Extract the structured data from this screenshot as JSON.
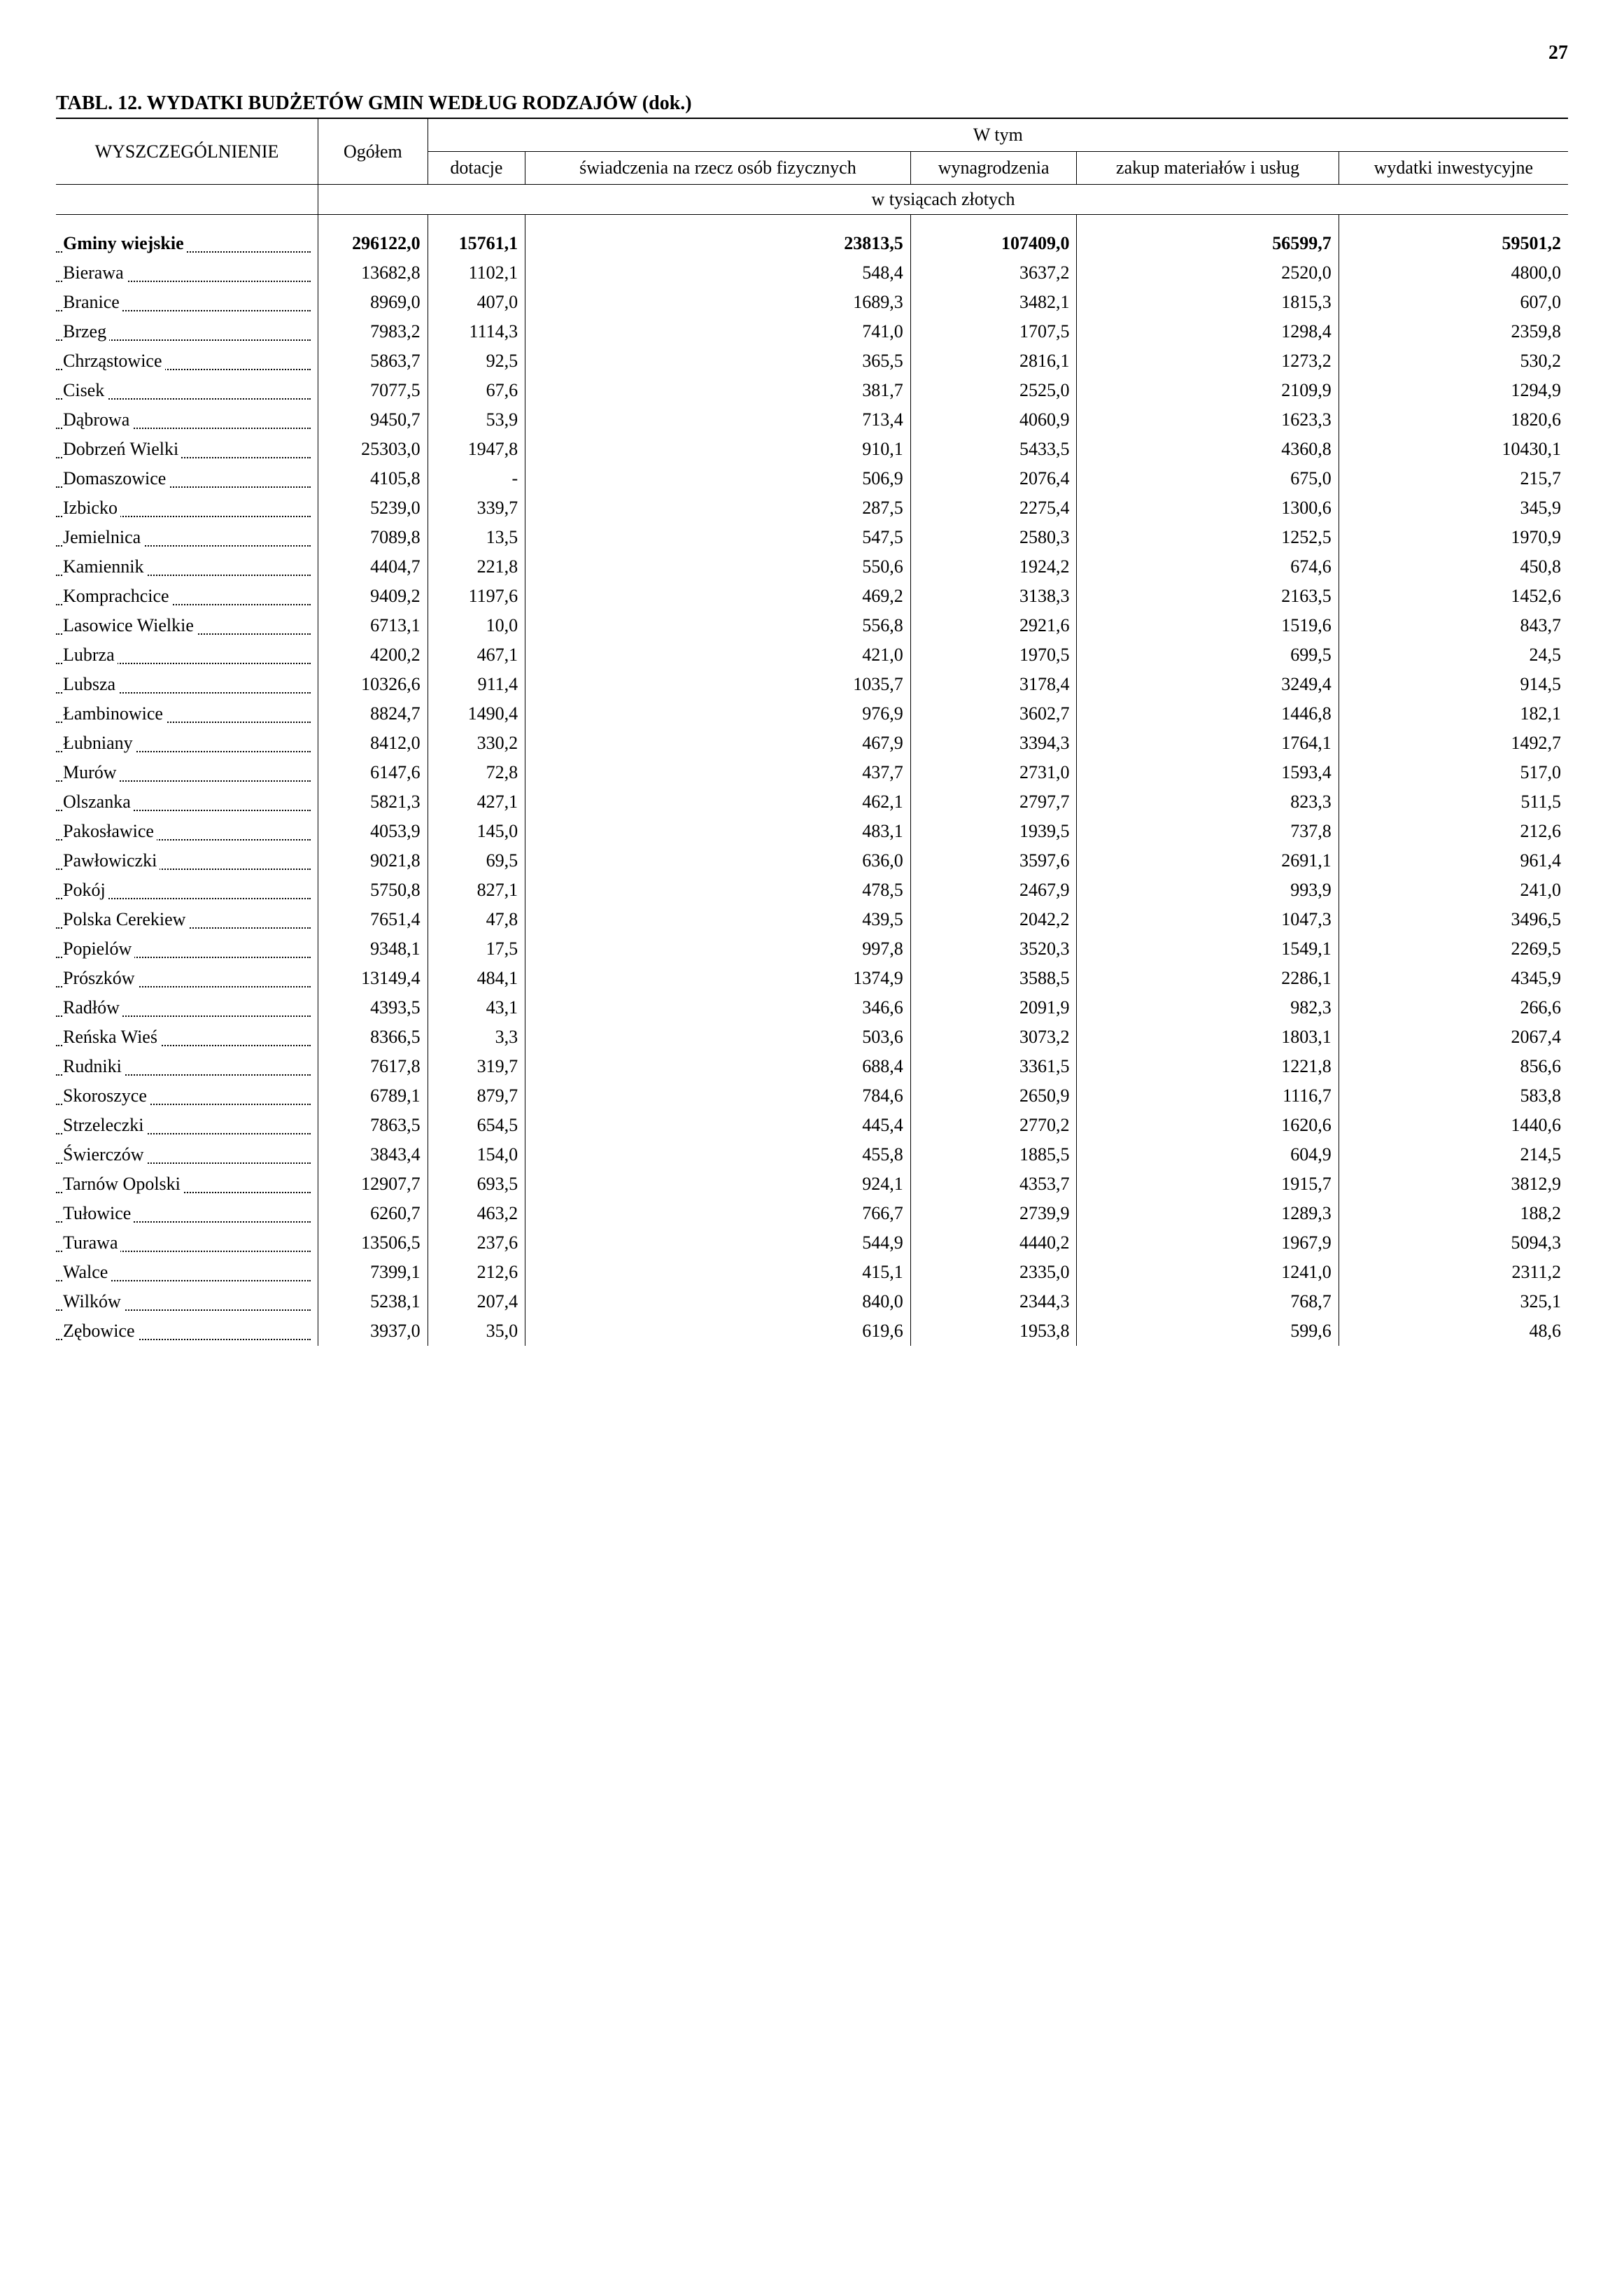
{
  "page_number": "27",
  "title": "TABL. 12.    WYDATKI  BUDŻETÓW  GMIN  WEDŁUG  RODZAJÓW (dok.)",
  "header": {
    "wyszczegolnienie": "WYSZCZEGÓLNIENIE",
    "ogolem": "Ogółem",
    "wtym": "W tym",
    "dotacje": "dotacje",
    "swiadczenia": "świadczenia na rzecz osób fizycznych",
    "wynagrodzenia": "wynagro­dzenia",
    "zakup": "zakup materiałów i usług",
    "wydatki": "wydatki inwesty­cyjne",
    "units": "w tysiącach złotych"
  },
  "rows": [
    {
      "bold": true,
      "label": "Gminy wiejskie",
      "v": [
        "296122,0",
        "15761,1",
        "23813,5",
        "107409,0",
        "56599,7",
        "59501,2"
      ]
    },
    {
      "label": "Bierawa",
      "v": [
        "13682,8",
        "1102,1",
        "548,4",
        "3637,2",
        "2520,0",
        "4800,0"
      ]
    },
    {
      "label": "Branice",
      "v": [
        "8969,0",
        "407,0",
        "1689,3",
        "3482,1",
        "1815,3",
        "607,0"
      ]
    },
    {
      "label": "Brzeg",
      "v": [
        "7983,2",
        "1114,3",
        "741,0",
        "1707,5",
        "1298,4",
        "2359,8"
      ]
    },
    {
      "label": "Chrząstowice",
      "v": [
        "5863,7",
        "92,5",
        "365,5",
        "2816,1",
        "1273,2",
        "530,2"
      ]
    },
    {
      "label": "Cisek",
      "v": [
        "7077,5",
        "67,6",
        "381,7",
        "2525,0",
        "2109,9",
        "1294,9"
      ]
    },
    {
      "label": "Dąbrowa",
      "v": [
        "9450,7",
        "53,9",
        "713,4",
        "4060,9",
        "1623,3",
        "1820,6"
      ]
    },
    {
      "label": "Dobrzeń Wielki",
      "v": [
        "25303,0",
        "1947,8",
        "910,1",
        "5433,5",
        "4360,8",
        "10430,1"
      ]
    },
    {
      "label": "Domaszowice",
      "v": [
        "4105,8",
        "-",
        "506,9",
        "2076,4",
        "675,0",
        "215,7"
      ]
    },
    {
      "label": "Izbicko",
      "v": [
        "5239,0",
        "339,7",
        "287,5",
        "2275,4",
        "1300,6",
        "345,9"
      ]
    },
    {
      "label": "Jemielnica",
      "v": [
        "7089,8",
        "13,5",
        "547,5",
        "2580,3",
        "1252,5",
        "1970,9"
      ]
    },
    {
      "label": "Kamiennik",
      "v": [
        "4404,7",
        "221,8",
        "550,6",
        "1924,2",
        "674,6",
        "450,8"
      ]
    },
    {
      "label": "Komprachcice",
      "v": [
        "9409,2",
        "1197,6",
        "469,2",
        "3138,3",
        "2163,5",
        "1452,6"
      ]
    },
    {
      "label": "Lasowice Wielkie",
      "v": [
        "6713,1",
        "10,0",
        "556,8",
        "2921,6",
        "1519,6",
        "843,7"
      ]
    },
    {
      "label": "Lubrza",
      "v": [
        "4200,2",
        "467,1",
        "421,0",
        "1970,5",
        "699,5",
        "24,5"
      ]
    },
    {
      "label": "Lubsza",
      "v": [
        "10326,6",
        "911,4",
        "1035,7",
        "3178,4",
        "3249,4",
        "914,5"
      ]
    },
    {
      "label": "Łambinowice",
      "v": [
        "8824,7",
        "1490,4",
        "976,9",
        "3602,7",
        "1446,8",
        "182,1"
      ]
    },
    {
      "label": "Łubniany",
      "v": [
        "8412,0",
        "330,2",
        "467,9",
        "3394,3",
        "1764,1",
        "1492,7"
      ]
    },
    {
      "label": "Murów",
      "v": [
        "6147,6",
        "72,8",
        "437,7",
        "2731,0",
        "1593,4",
        "517,0"
      ]
    },
    {
      "label": "Olszanka",
      "v": [
        "5821,3",
        "427,1",
        "462,1",
        "2797,7",
        "823,3",
        "511,5"
      ]
    },
    {
      "label": "Pakosławice",
      "v": [
        "4053,9",
        "145,0",
        "483,1",
        "1939,5",
        "737,8",
        "212,6"
      ]
    },
    {
      "label": "Pawłowiczki",
      "v": [
        "9021,8",
        "69,5",
        "636,0",
        "3597,6",
        "2691,1",
        "961,4"
      ]
    },
    {
      "label": "Pokój",
      "v": [
        "5750,8",
        "827,1",
        "478,5",
        "2467,9",
        "993,9",
        "241,0"
      ]
    },
    {
      "label": "Polska Cerekiew",
      "v": [
        "7651,4",
        "47,8",
        "439,5",
        "2042,2",
        "1047,3",
        "3496,5"
      ]
    },
    {
      "label": "Popielów",
      "v": [
        "9348,1",
        "17,5",
        "997,8",
        "3520,3",
        "1549,1",
        "2269,5"
      ]
    },
    {
      "label": "Prószków",
      "v": [
        "13149,4",
        "484,1",
        "1374,9",
        "3588,5",
        "2286,1",
        "4345,9"
      ]
    },
    {
      "label": "Radłów",
      "v": [
        "4393,5",
        "43,1",
        "346,6",
        "2091,9",
        "982,3",
        "266,6"
      ]
    },
    {
      "label": "Reńska Wieś",
      "v": [
        "8366,5",
        "3,3",
        "503,6",
        "3073,2",
        "1803,1",
        "2067,4"
      ]
    },
    {
      "label": "Rudniki",
      "v": [
        "7617,8",
        "319,7",
        "688,4",
        "3361,5",
        "1221,8",
        "856,6"
      ]
    },
    {
      "label": "Skoroszyce",
      "v": [
        "6789,1",
        "879,7",
        "784,6",
        "2650,9",
        "1116,7",
        "583,8"
      ]
    },
    {
      "label": "Strzeleczki",
      "v": [
        "7863,5",
        "654,5",
        "445,4",
        "2770,2",
        "1620,6",
        "1440,6"
      ]
    },
    {
      "label": "Świerczów",
      "v": [
        "3843,4",
        "154,0",
        "455,8",
        "1885,5",
        "604,9",
        "214,5"
      ]
    },
    {
      "label": "Tarnów Opolski",
      "v": [
        "12907,7",
        "693,5",
        "924,1",
        "4353,7",
        "1915,7",
        "3812,9"
      ]
    },
    {
      "label": "Tułowice",
      "v": [
        "6260,7",
        "463,2",
        "766,7",
        "2739,9",
        "1289,3",
        "188,2"
      ]
    },
    {
      "label": "Turawa",
      "v": [
        "13506,5",
        "237,6",
        "544,9",
        "4440,2",
        "1967,9",
        "5094,3"
      ]
    },
    {
      "label": "Walce",
      "v": [
        "7399,1",
        "212,6",
        "415,1",
        "2335,0",
        "1241,0",
        "2311,2"
      ]
    },
    {
      "label": "Wilków",
      "v": [
        "5238,1",
        "207,4",
        "840,0",
        "2344,3",
        "768,7",
        "325,1"
      ]
    },
    {
      "label": "Zębowice",
      "v": [
        "3937,0",
        "35,0",
        "619,6",
        "1953,8",
        "599,6",
        "48,6"
      ]
    }
  ]
}
